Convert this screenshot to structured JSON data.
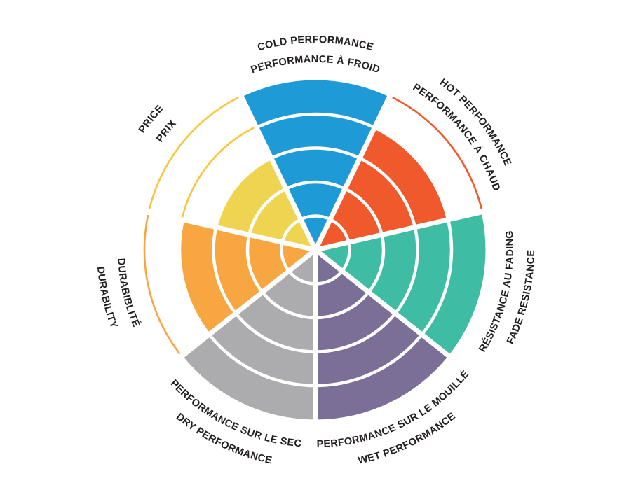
{
  "chart_data": {
    "type": "polar-wheel",
    "title": "",
    "description": "Seven-sector tire performance rating wheel; each sector is filled to a number of rings out of 5, starting at the top and proceeding clockwise.",
    "max_rings": 5,
    "ring_count_per_sector": 5,
    "layout_hints": {
      "start_angle": "top",
      "direction": "clockwise",
      "grid": "white ring dividers and white radial gaps",
      "unfilled_ring_boundaries": "thin arcs drawn in the sector color"
    },
    "segments": [
      {
        "id": "cold-performance",
        "label_en": "COLD PERFORMANCE",
        "label_fr": "PERFORMANCE À FROID",
        "value": 5,
        "color": "#1E9AD6"
      },
      {
        "id": "hot-performance",
        "label_en": "HOT PERFORMANCE",
        "label_fr": "PERFORMANCE À CHAUD",
        "value": 4,
        "color": "#F0592B"
      },
      {
        "id": "fade-resistance",
        "label_en": "FADE RESISTANCE",
        "label_fr": "RÉSISTANCE AU FADING",
        "value": 5,
        "color": "#3EBDA4"
      },
      {
        "id": "wet-performance",
        "label_en": "WET PERFORMANCE",
        "label_fr": "PERFORMANCE SUR LE MOUILLÉ",
        "value": 5,
        "color": "#7B6F98"
      },
      {
        "id": "dry-performance",
        "label_en": "DRY PERFORMANCE",
        "label_fr": "PERFORMANCE SUR LE SEC",
        "value": 5,
        "color": "#ACACAE"
      },
      {
        "id": "durability",
        "label_en": "DURABILITY",
        "label_fr": "DURABIBLITÉ",
        "value": 4,
        "color": "#F8A641"
      },
      {
        "id": "price",
        "label_en": "PRICE",
        "label_fr": "PRIX",
        "value": 3,
        "color": "#EFD451",
        "arc_color": "#F5C63E"
      }
    ],
    "colors": {
      "background": "#FFFFFF",
      "grid_white": "#FFFFFF",
      "label_text": "#231F20"
    }
  }
}
